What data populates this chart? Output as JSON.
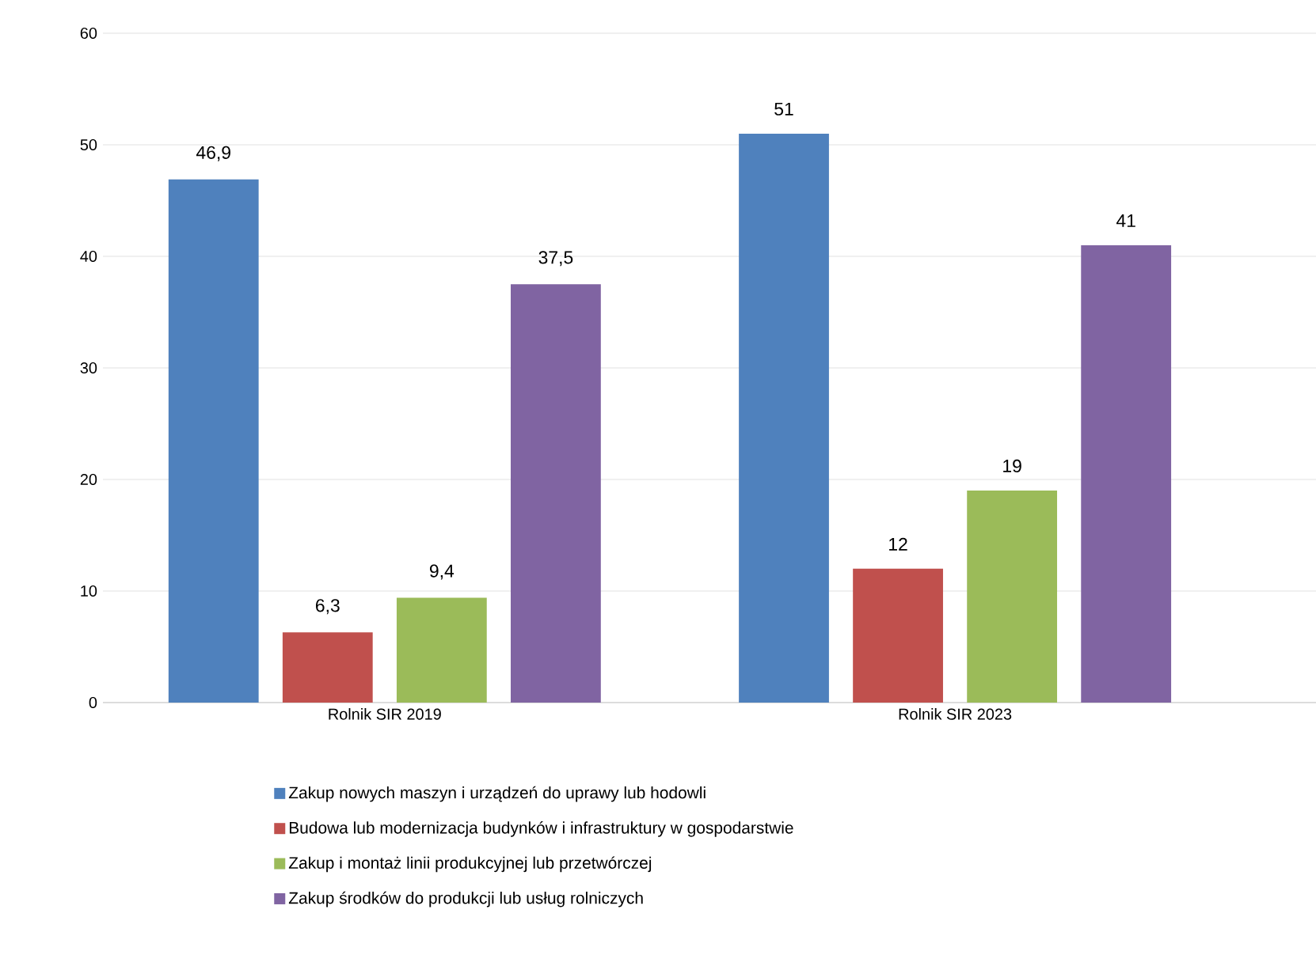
{
  "chart_data": {
    "type": "bar",
    "categories": [
      "Rolnik SIR 2019",
      "Rolnik SIR 2023"
    ],
    "series": [
      {
        "name": "Zakup nowych maszyn i urządzeń do uprawy lub hodowli",
        "color": "#4f81bd",
        "values": [
          46.9,
          51
        ],
        "value_labels": [
          "46,9",
          "51"
        ]
      },
      {
        "name": "Budowa lub modernizacja budynków i infrastruktury w gospodarstwie",
        "color": "#c0504d",
        "values": [
          6.3,
          12
        ],
        "value_labels": [
          "6,3",
          "12"
        ]
      },
      {
        "name": "Zakup i montaż linii produkcyjnej lub przetwórczej",
        "color": "#9bbb59",
        "values": [
          9.4,
          19
        ],
        "value_labels": [
          "9,4",
          "19"
        ]
      },
      {
        "name": "Zakup środków do produkcji lub usług rolniczych",
        "color": "#8064a2",
        "values": [
          37.5,
          41
        ],
        "value_labels": [
          "37,5",
          "41"
        ]
      }
    ],
    "ylim": [
      0,
      60
    ],
    "yticks": [
      0,
      10,
      20,
      30,
      40,
      50,
      60
    ],
    "grid": "y",
    "legend": "bottom"
  }
}
